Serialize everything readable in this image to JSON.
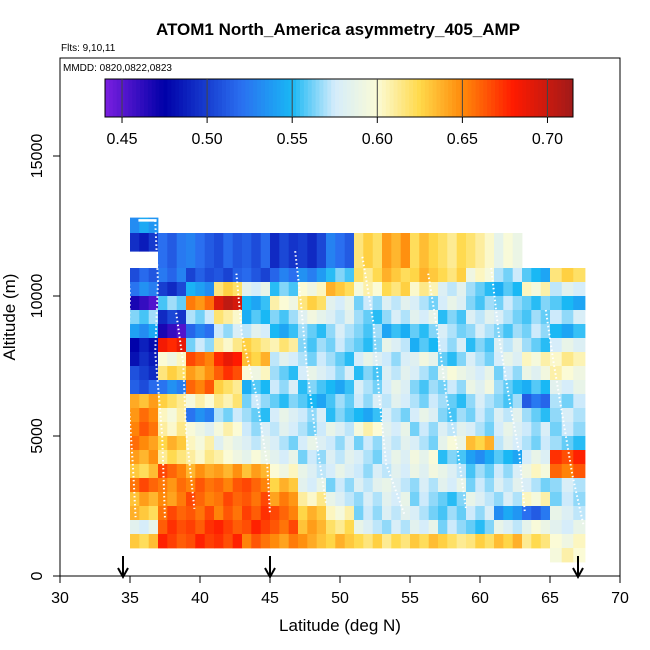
{
  "chart_data": {
    "type": "heatmap",
    "title": "ATOM1 North_America asymmetry_405_AMP",
    "flights_label": "Flts: 9,10,11",
    "dates_label": "MMDD: 0820,0822,0823",
    "xlabel": "Latitude (deg N)",
    "ylabel": "Altitude (m)",
    "xlim": [
      30,
      70
    ],
    "ylim": [
      0,
      18500
    ],
    "x_ticks": [
      "30",
      "35",
      "40",
      "45",
      "50",
      "55",
      "60",
      "65",
      "70"
    ],
    "y_ticks": [
      "0",
      "5000",
      "10000",
      "15000"
    ],
    "colorbar": {
      "range": [
        0.44,
        0.715
      ],
      "ticks": [
        "0.45",
        "0.50",
        "0.55",
        "0.60",
        "0.65",
        "0.70"
      ],
      "stops": [
        {
          "v": 0.44,
          "color": "#7b1fe0"
        },
        {
          "v": 0.475,
          "color": "#0000a8"
        },
        {
          "v": 0.52,
          "color": "#2a6ff0"
        },
        {
          "v": 0.55,
          "color": "#19b8f5"
        },
        {
          "v": 0.575,
          "color": "#d4ecfb"
        },
        {
          "v": 0.6,
          "color": "#fbfbd6"
        },
        {
          "v": 0.625,
          "color": "#ffd94a"
        },
        {
          "v": 0.65,
          "color": "#ff8a0a"
        },
        {
          "v": 0.68,
          "color": "#ff1a00"
        },
        {
          "v": 0.715,
          "color": "#a01a1a"
        }
      ]
    },
    "arrows_latitude": [
      34.5,
      45,
      67
    ],
    "lat_edges": [
      35,
      37,
      39,
      41,
      43,
      45,
      47,
      49,
      51,
      53,
      55,
      57,
      59,
      61,
      63,
      65,
      67.5
    ],
    "alt_bins": [
      {
        "alt": [
          12250,
          12800
        ],
        "lat": [
          35,
          37
        ],
        "values": [
          0.54
        ]
      },
      {
        "alt": [
          11600,
          12250
        ],
        "lat": [
          35,
          37
        ],
        "values": [
          0.49
        ]
      },
      {
        "alt": [
          11000,
          12250
        ],
        "lat": [
          37,
          65
        ],
        "values": [
          0.52,
          0.52,
          0.51,
          0.51,
          0.5,
          0.5,
          0.52,
          0.62,
          0.64,
          0.63,
          0.62,
          0.61,
          0.59
        ]
      },
      {
        "alt": [
          10500,
          11000
        ],
        "lat": [
          35,
          67.5
        ],
        "values": [
          0.51,
          0.52,
          0.51,
          0.51,
          0.51,
          0.52,
          0.53,
          0.56,
          0.62,
          0.63,
          0.63,
          0.62,
          0.6,
          0.57,
          0.55,
          0.62
        ]
      },
      {
        "alt": [
          10000,
          10500
        ],
        "lat": [
          35,
          67.5
        ],
        "values": [
          0.53,
          0.5,
          0.54,
          0.62,
          0.58,
          0.56,
          0.6,
          0.63,
          0.6,
          0.62,
          0.61,
          0.58,
          0.56,
          0.55,
          0.6,
          0.58
        ]
      },
      {
        "alt": [
          9500,
          10000
        ],
        "lat": [
          35,
          67.5
        ],
        "values": [
          0.46,
          0.56,
          0.65,
          0.7,
          0.55,
          0.6,
          0.62,
          0.58,
          0.57,
          0.58,
          0.57,
          0.58,
          0.56,
          0.57,
          0.56,
          0.55
        ]
      },
      {
        "alt": [
          9000,
          9500
        ],
        "lat": [
          35,
          67.5
        ],
        "values": [
          0.56,
          0.5,
          0.57,
          0.61,
          0.55,
          0.56,
          0.59,
          0.58,
          0.56,
          0.57,
          0.58,
          0.56,
          0.58,
          0.57,
          0.56,
          0.57
        ]
      },
      {
        "alt": [
          8500,
          9000
        ],
        "lat": [
          35,
          67.5
        ],
        "values": [
          0.54,
          0.46,
          0.52,
          0.57,
          0.58,
          0.55,
          0.56,
          0.57,
          0.56,
          0.55,
          0.56,
          0.57,
          0.57,
          0.56,
          0.57,
          0.55
        ]
      },
      {
        "alt": [
          8000,
          8500
        ],
        "lat": [
          35,
          67.5
        ],
        "values": [
          0.48,
          0.68,
          0.57,
          0.61,
          0.62,
          0.61,
          0.56,
          0.57,
          0.56,
          0.58,
          0.55,
          0.57,
          0.56,
          0.58,
          0.56,
          0.58
        ]
      },
      {
        "alt": [
          7500,
          8000
        ],
        "lat": [
          35,
          67.5
        ],
        "values": [
          0.49,
          0.6,
          0.66,
          0.68,
          0.63,
          0.58,
          0.57,
          0.56,
          0.58,
          0.57,
          0.59,
          0.56,
          0.57,
          0.58,
          0.6,
          0.61
        ]
      },
      {
        "alt": [
          7000,
          7500
        ],
        "lat": [
          35,
          67.5
        ],
        "values": [
          0.5,
          0.62,
          0.64,
          0.67,
          0.6,
          0.56,
          0.58,
          0.57,
          0.56,
          0.58,
          0.57,
          0.59,
          0.58,
          0.57,
          0.59,
          0.6
        ]
      },
      {
        "alt": [
          6500,
          7000
        ],
        "lat": [
          35,
          67.5
        ],
        "values": [
          0.51,
          0.53,
          0.66,
          0.62,
          0.55,
          0.57,
          0.56,
          0.55,
          0.57,
          0.58,
          0.56,
          0.57,
          0.59,
          0.56,
          0.55,
          0.58
        ]
      },
      {
        "alt": [
          6000,
          6500
        ],
        "lat": [
          35,
          67.5
        ],
        "values": [
          0.64,
          0.62,
          0.6,
          0.61,
          0.57,
          0.56,
          0.55,
          0.56,
          0.57,
          0.58,
          0.57,
          0.56,
          0.57,
          0.56,
          0.52,
          0.57
        ]
      },
      {
        "alt": [
          5500,
          6000
        ],
        "lat": [
          35,
          67.5
        ],
        "values": [
          0.65,
          0.6,
          0.53,
          0.57,
          0.56,
          0.58,
          0.57,
          0.56,
          0.55,
          0.57,
          0.58,
          0.56,
          0.57,
          0.58,
          0.56,
          0.57
        ]
      },
      {
        "alt": [
          5000,
          5500
        ],
        "lat": [
          35,
          67.5
        ],
        "values": [
          0.66,
          0.61,
          0.59,
          0.6,
          0.57,
          0.58,
          0.57,
          0.58,
          0.6,
          0.58,
          0.57,
          0.58,
          0.57,
          0.58,
          0.57,
          0.57
        ]
      },
      {
        "alt": [
          4500,
          5000
        ],
        "lat": [
          35,
          67.5
        ],
        "values": [
          0.65,
          0.63,
          0.6,
          0.59,
          0.58,
          0.57,
          0.58,
          0.57,
          0.57,
          0.58,
          0.57,
          0.59,
          0.63,
          0.58,
          0.57,
          0.56
        ]
      },
      {
        "alt": [
          4000,
          4500
        ],
        "lat": [
          35,
          67.5
        ],
        "values": [
          0.64,
          0.62,
          0.61,
          0.6,
          0.59,
          0.58,
          0.57,
          0.58,
          0.57,
          0.58,
          0.59,
          0.56,
          0.54,
          0.55,
          0.58,
          0.67
        ]
      },
      {
        "alt": [
          3500,
          4000
        ],
        "lat": [
          35,
          67.5
        ],
        "values": [
          0.63,
          0.66,
          0.64,
          0.64,
          0.64,
          0.6,
          0.58,
          0.58,
          0.57,
          0.58,
          0.59,
          0.58,
          0.56,
          0.57,
          0.6,
          0.66
        ]
      },
      {
        "alt": [
          3000,
          3500
        ],
        "lat": [
          35,
          67.5
        ],
        "values": [
          0.66,
          0.65,
          0.66,
          0.66,
          0.66,
          0.63,
          0.58,
          0.57,
          0.58,
          0.58,
          0.57,
          0.58,
          0.57,
          0.58,
          0.57,
          0.57
        ]
      },
      {
        "alt": [
          2500,
          3000
        ],
        "lat": [
          35,
          67.5
        ],
        "values": [
          0.64,
          0.65,
          0.66,
          0.66,
          0.66,
          0.65,
          0.61,
          0.58,
          0.57,
          0.58,
          0.57,
          0.56,
          0.58,
          0.57,
          0.6,
          0.57
        ]
      },
      {
        "alt": [
          2000,
          2500
        ],
        "lat": [
          35,
          67.5
        ],
        "values": [
          0.63,
          0.66,
          0.66,
          0.66,
          0.67,
          0.66,
          0.63,
          0.6,
          0.57,
          0.58,
          0.57,
          0.56,
          0.57,
          0.54,
          0.52,
          0.58
        ]
      },
      {
        "alt": [
          1500,
          2000
        ],
        "lat": [
          35,
          67.5
        ],
        "values": [
          0.58,
          0.67,
          0.67,
          0.67,
          0.67,
          0.66,
          0.64,
          0.62,
          0.58,
          0.57,
          0.58,
          0.57,
          0.56,
          0.58,
          0.59,
          0.58
        ]
      },
      {
        "alt": [
          1000,
          1500
        ],
        "lat": [
          35,
          67.5
        ],
        "values": [
          0.63,
          0.67,
          0.67,
          0.67,
          0.66,
          0.65,
          0.64,
          0.63,
          0.62,
          0.62,
          0.63,
          0.62,
          0.62,
          0.63,
          0.62,
          0.6
        ]
      },
      {
        "alt": [
          500,
          1000
        ],
        "lat": [
          65,
          67.5
        ],
        "values": [
          0.6
        ]
      }
    ]
  }
}
